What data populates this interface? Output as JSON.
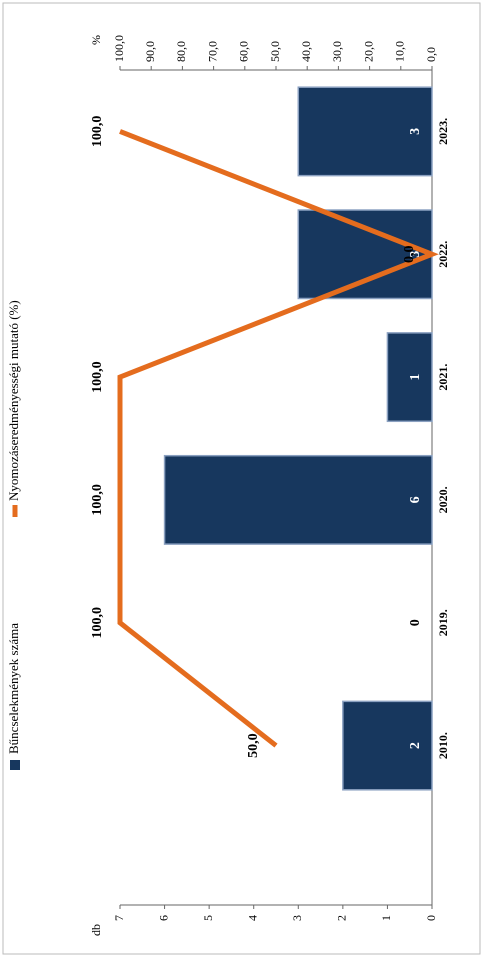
{
  "chart_data": {
    "type": "bar",
    "categories": [
      "2010.",
      "2019.",
      "2020.",
      "2021.",
      "2022.",
      "2023."
    ],
    "series": [
      {
        "name": "Bűncselekmények száma",
        "color": "#17375e",
        "type": "bar",
        "values": [
          2,
          0,
          6,
          1,
          3,
          3
        ]
      },
      {
        "name": "Nyomozáseredményességi mutató (%)",
        "color": "#e46c1e",
        "type": "line",
        "axis": "y2",
        "values": [
          50,
          100,
          100,
          100,
          0,
          100
        ],
        "value_labels": [
          "50,0",
          "100,0",
          "100,0",
          "100,0",
          "0,0",
          "100,0"
        ]
      }
    ],
    "y_label": "db",
    "y2_label": "%",
    "ylim": [
      0,
      7
    ],
    "yticks": [
      0,
      1,
      2,
      3,
      4,
      5,
      6,
      7
    ],
    "y2lim": [
      0,
      100
    ],
    "y2ticks": [
      {
        "value": 0,
        "label": "0,0"
      },
      {
        "value": 10,
        "label": "10,0"
      },
      {
        "value": 20,
        "label": "20,0"
      },
      {
        "value": 30,
        "label": "30,0"
      },
      {
        "value": 40,
        "label": "40,0"
      },
      {
        "value": 50,
        "label": "50,0"
      },
      {
        "value": 60,
        "label": "60,0"
      },
      {
        "value": 70,
        "label": "70,0"
      },
      {
        "value": 80,
        "label": "80,0"
      },
      {
        "value": 90,
        "label": "90,0"
      },
      {
        "value": 100,
        "label": "100,0"
      }
    ],
    "grid": false,
    "legend": "top"
  }
}
